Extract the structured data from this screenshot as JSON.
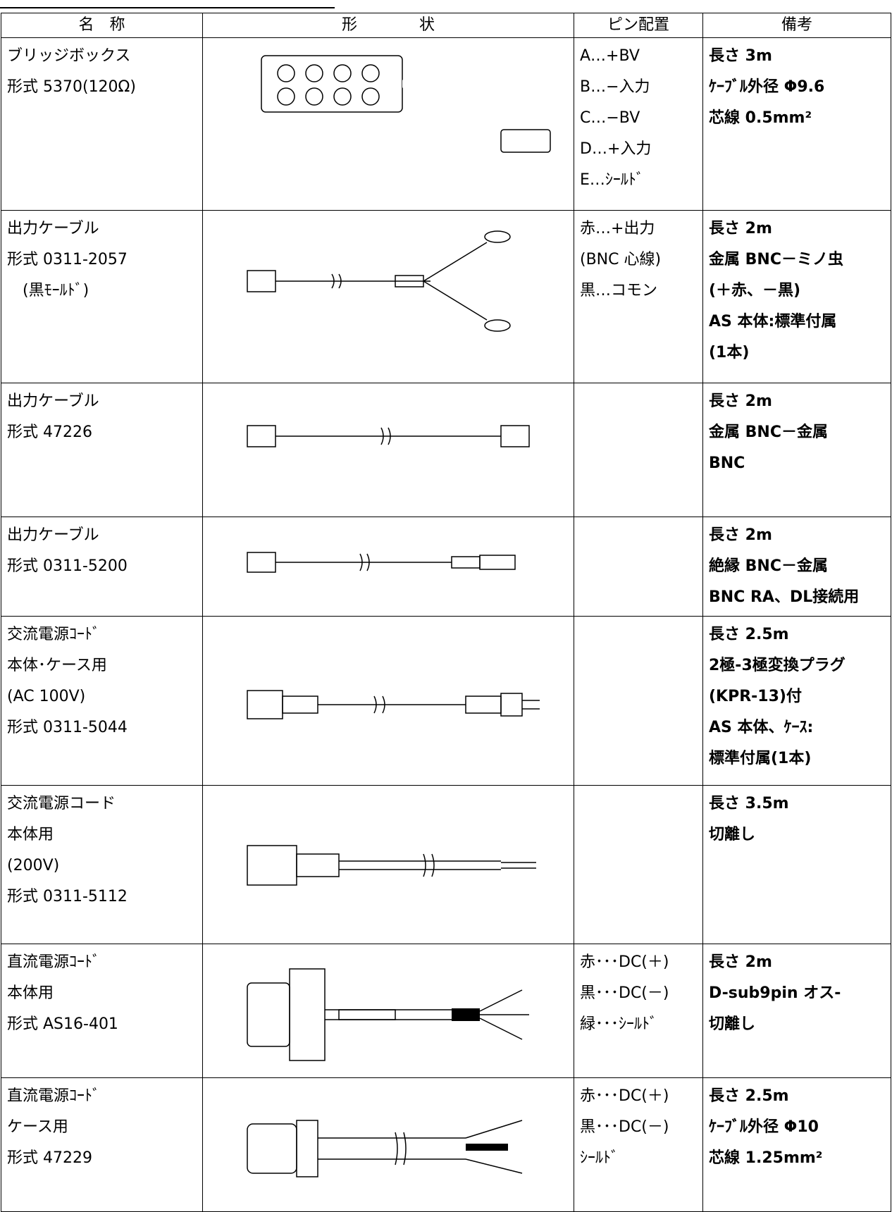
{
  "table": {
    "header": [
      "名　称",
      "形　　　　状",
      "ピン配置",
      "備考"
    ],
    "rows": [
      {
        "name": [
          "ブリッジボックス",
          "形式 5370(120Ω)"
        ],
        "pins": [
          "A…+BV",
          "B…−入力",
          "C…−BV",
          "D…+入力",
          "E…ｼｰﾙﾄﾞ"
        ],
        "notes": [
          "長さ 3m",
          "ｹｰﾌﾞﾙ外径 Φ9.6",
          "芯線 0.5mm²"
        ]
      },
      {
        "name": [
          "出力ケーブル",
          "形式 0311-2057",
          "　(黒ﾓｰﾙﾄﾞ)"
        ],
        "pins": [
          "赤…+出力",
          "(BNC 心線)",
          "黒…コモン"
        ],
        "notes": [
          "長さ 2m",
          "金属 BNC－ミノ虫",
          "(＋赤、－黒)",
          "AS 本体:標準付属",
          "(1本)"
        ]
      },
      {
        "name": [
          "出力ケーブル",
          "形式 47226"
        ],
        "pins": [],
        "notes": [
          "長さ 2m",
          "金属 BNC－金属",
          "BNC"
        ]
      },
      {
        "name": [
          "出力ケーブル",
          "形式 0311-5200"
        ],
        "pins": [],
        "notes": [
          "長さ 2m",
          "絶縁 BNC－金属",
          "BNC RA、DL接続用"
        ]
      },
      {
        "name": [
          "交流電源ｺｰﾄﾞ",
          "本体･ケース用",
          "(AC 100V)",
          "形式 0311-5044"
        ],
        "pins": [],
        "notes": [
          "長さ 2.5m",
          "2極-3極変換プラグ",
          "(KPR-13)付",
          "AS 本体、ｹｰｽ:",
          "標準付属(1本)"
        ]
      },
      {
        "name": [
          "交流電源コード",
          "本体用",
          "(200V)",
          "形式 0311-5112"
        ],
        "pins": [],
        "notes": [
          "長さ 3.5m",
          "切離し"
        ]
      },
      {
        "name": [
          "直流電源ｺｰﾄﾞ",
          "本体用",
          "形式 AS16-401"
        ],
        "pins": [
          "赤･･･DC(＋)",
          "黒･･･DC(－)",
          "緑･･･ｼｰﾙﾄﾞ"
        ],
        "notes": [
          "長さ 2m",
          "D-sub9pin オス-",
          "切離し"
        ]
      },
      {
        "name": [
          "直流電源ｺｰﾄﾞ",
          "ケース用",
          "形式 47229"
        ],
        "pins": [
          "赤･･･DC(＋)",
          "黒･･･DC(－)",
          "ｼｰﾙﾄﾞ"
        ],
        "notes": [
          "長さ 2.5m",
          "ｹｰﾌﾞﾙ外径 Φ10",
          "芯線 1.25mm²"
        ]
      }
    ]
  }
}
